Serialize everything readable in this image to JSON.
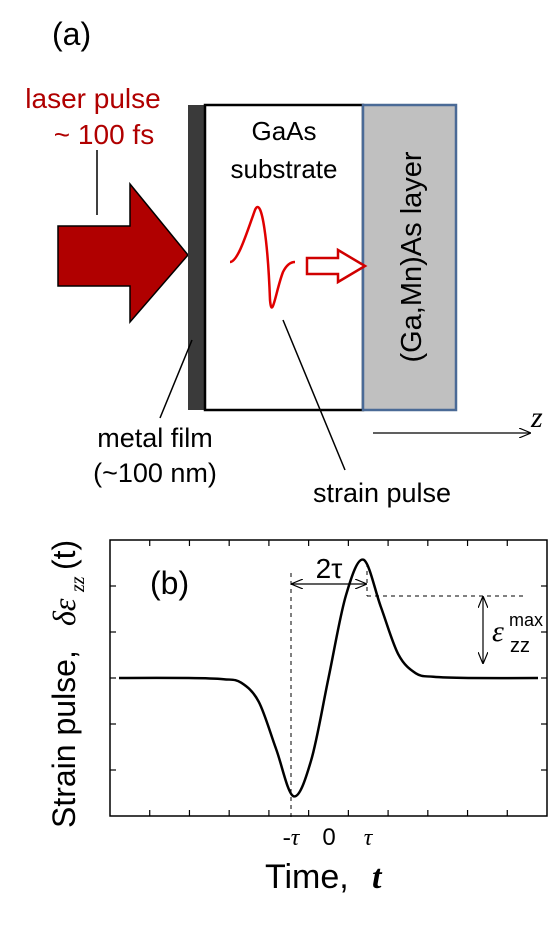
{
  "panel_a": {
    "label": "(a)",
    "laser_line1": "laser pulse",
    "laser_line2": "~ 100 fs",
    "substrate_line1": "GaAs",
    "substrate_line2": "substrate",
    "layer_label": "(Ga,Mn)As layer",
    "metal_line1": "metal film",
    "metal_line2": "(~100 nm)",
    "strain_label": "strain pulse",
    "z_label": "z",
    "colors": {
      "laser": "#b00000",
      "layer_fill": "#c0c0c0",
      "layer_border": "#4a6a96",
      "metal": "#3a3a3a",
      "pulse": "#e00000"
    }
  },
  "panel_b": {
    "label": "(b)",
    "ylabel_text": "Strain pulse,",
    "ylabel_symbol": "δε",
    "ylabel_sub": "zz",
    "ylabel_arg": "(t)",
    "xlabel_text": "Time,",
    "xlabel_var": "t",
    "width_label": "2τ",
    "amp_symbol": "ε",
    "amp_sup": "max",
    "amp_sub": "zz",
    "tick_neg_tau": "-τ",
    "tick_zero": "0",
    "tick_tau": "τ"
  },
  "chart_data": {
    "type": "line",
    "title": "",
    "xlabel": "Time, t",
    "ylabel": "Strain pulse, δε_zz(t)",
    "x_ticklabels": [
      "-τ",
      "0",
      "τ"
    ],
    "xlim": [
      -6.2,
      6.2
    ],
    "ylim": [
      -1.15,
      1.15
    ],
    "series": [
      {
        "x": [
          -6.0,
          -4.0,
          -3.0,
          -2.5,
          -2.0,
          -1.5,
          -1.0,
          -0.5,
          0.0,
          0.5,
          1.0,
          1.5,
          2.0,
          2.5,
          3.0,
          4.0,
          6.0
        ],
        "y": [
          0.0,
          0.0,
          -0.01,
          -0.04,
          -0.2,
          -0.6,
          -1.0,
          -0.7,
          0.0,
          0.7,
          1.0,
          0.6,
          0.2,
          0.04,
          0.01,
          0.0,
          0.0
        ]
      }
    ],
    "annotations": [
      "2τ",
      "ε_zz^max"
    ]
  }
}
